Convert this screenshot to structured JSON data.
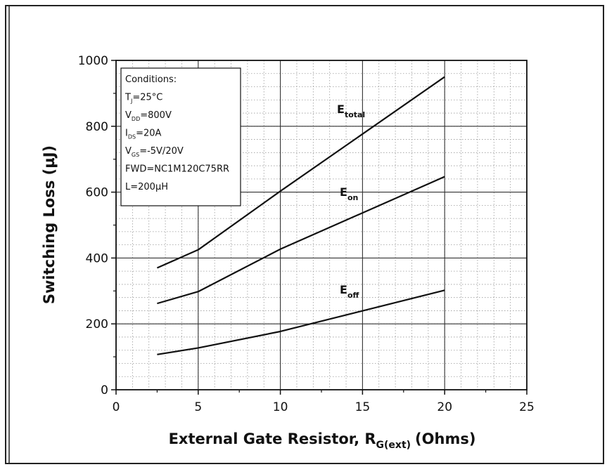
{
  "chart_data": {
    "type": "line",
    "xlabel": "External Gate Resistor, R",
    "xlabel_sub": "G(ext)",
    "xlabel_unit": "(Ohms)",
    "ylabel": "Switching Loss (µJ)",
    "xlim": [
      0,
      25
    ],
    "ylim": [
      0,
      1000
    ],
    "x_ticks": [
      "0",
      "5",
      "10",
      "15",
      "20",
      "25"
    ],
    "y_ticks": [
      "0",
      "200",
      "400",
      "600",
      "800",
      "1000"
    ],
    "grid": true,
    "series": [
      {
        "name": "E",
        "sub": "total",
        "x": [
          2.5,
          5,
          10,
          20
        ],
        "y": [
          370,
          425,
          603,
          950
        ]
      },
      {
        "name": "E",
        "sub": "on",
        "x": [
          2.5,
          5,
          10,
          20
        ],
        "y": [
          262,
          298,
          427,
          647
        ]
      },
      {
        "name": "E",
        "sub": "off",
        "x": [
          2.5,
          5,
          10,
          20
        ],
        "y": [
          107,
          127,
          177,
          302
        ]
      }
    ],
    "annotations": [
      {
        "text": "Conditions:"
      },
      {
        "text": "T",
        "sub": "J",
        "rest": "=25°C"
      },
      {
        "text": "V",
        "sub": "DD",
        "rest": "=800V"
      },
      {
        "text": "I",
        "sub": "DS",
        "rest": "=20A"
      },
      {
        "text": "V",
        "sub": "GS",
        "rest": "=-5V/20V"
      },
      {
        "text": "FWD=NC1M120C75RR"
      },
      {
        "text": "L=200µH"
      }
    ]
  }
}
